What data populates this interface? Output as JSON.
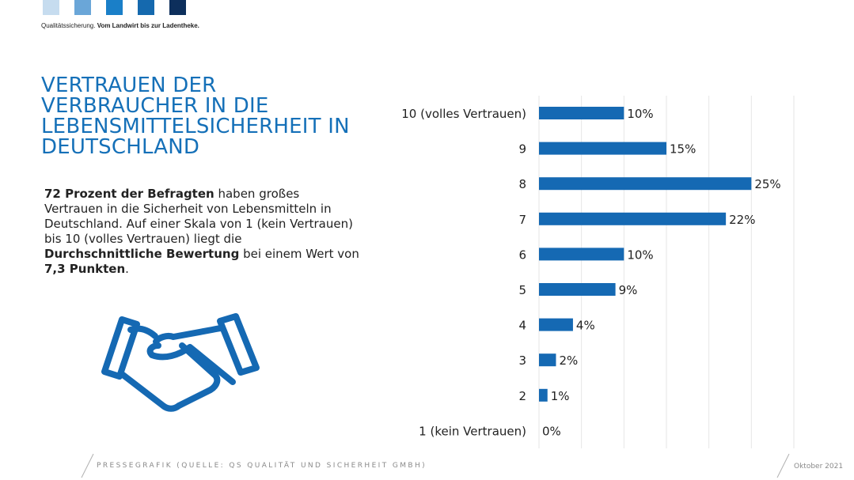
{
  "header": {
    "swatch_colors": [
      "#c6dcef",
      "#6aa6d8",
      "#1a7fc8",
      "#1569ae",
      "#0d2f5c"
    ],
    "tagline_regular": "Qualitätssicherung. ",
    "tagline_bold": "Vom Landwirt bis zur Ladentheke."
  },
  "title": "VERTRAUEN DER VERBRAUCHER IN DIE LEBENSMITTELSICHERHEIT IN DEUTSCHLAND",
  "body": {
    "p1_bold": "72 Prozent der Befragten",
    "p2": " haben großes Vertrauen in die Sicherheit von Lebensmitteln in Deutschland. Auf einer Skala von 1 (kein Vertrauen) bis 10 (volles Vertrauen) liegt die ",
    "p3_bold": "Durchschnittliche Bewertung",
    "p4": " bei einem Wert von ",
    "p5_bold": "7,3 Punkten",
    "p6": "."
  },
  "icon": "handshake-icon",
  "footer": {
    "source": "PRESSEGRAFIK (QUELLE: QS QUALITÄT UND SICHERHEIT GMBH)",
    "date": "Oktober 2021"
  },
  "colors": {
    "bar": "#1569b3",
    "title": "#1570b8",
    "grid": "#e6e6e6"
  },
  "chart_data": {
    "type": "bar",
    "orientation": "horizontal",
    "categories": [
      "10 (volles Vertrauen)",
      "9",
      "8",
      "7",
      "6",
      "5",
      "4",
      "3",
      "2",
      "1 (kein Vertrauen)"
    ],
    "values": [
      10,
      15,
      25,
      22,
      10,
      9,
      4,
      2,
      1,
      0
    ],
    "value_labels": [
      "10%",
      "15%",
      "25%",
      "22%",
      "10%",
      "9%",
      "4%",
      "2%",
      "1%",
      "0%"
    ],
    "unit": "%",
    "xlim": [
      0,
      30
    ],
    "grid": true
  }
}
